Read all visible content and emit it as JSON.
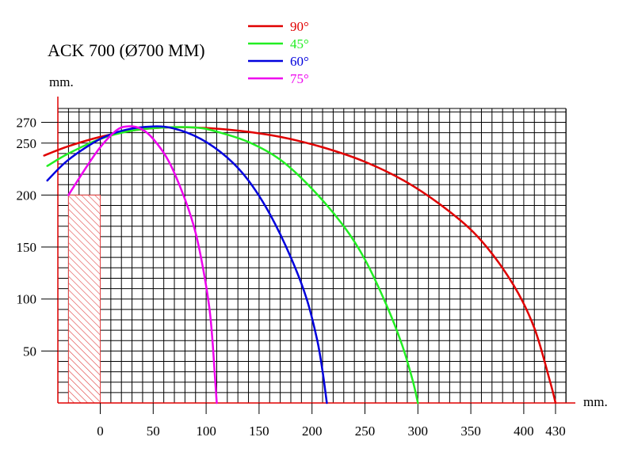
{
  "chart_data": {
    "type": "line",
    "title": "ACK 700 (Ø700 MM)",
    "xlabel": "mm.",
    "ylabel": "mm.",
    "xlim": [
      -40,
      440
    ],
    "ylim": [
      0,
      280
    ],
    "grid": true,
    "x_ticks": [
      0,
      50,
      100,
      150,
      200,
      250,
      300,
      350,
      400,
      430
    ],
    "y_ticks": [
      50,
      100,
      150,
      200,
      250,
      270
    ],
    "legend_position": "top-center",
    "blocked_region": {
      "x": [
        -30,
        0
      ],
      "y": [
        0,
        200
      ],
      "fill": "hatched"
    },
    "series": [
      {
        "name": "90°",
        "color": "#e00000",
        "points": [
          [
            -53,
            238
          ],
          [
            -30,
            247
          ],
          [
            0,
            256
          ],
          [
            30,
            262
          ],
          [
            60,
            265
          ],
          [
            90,
            265
          ],
          [
            130,
            262
          ],
          [
            170,
            256
          ],
          [
            210,
            246
          ],
          [
            250,
            232
          ],
          [
            290,
            212
          ],
          [
            330,
            184
          ],
          [
            360,
            156
          ],
          [
            390,
            114
          ],
          [
            410,
            72
          ],
          [
            425,
            20
          ],
          [
            430,
            0
          ]
        ]
      },
      {
        "name": "45°",
        "color": "#22ee22",
        "points": [
          [
            -50,
            228
          ],
          [
            -30,
            240
          ],
          [
            0,
            254
          ],
          [
            30,
            262
          ],
          [
            60,
            265
          ],
          [
            90,
            265
          ],
          [
            110,
            261
          ],
          [
            140,
            251
          ],
          [
            170,
            234
          ],
          [
            200,
            206
          ],
          [
            230,
            170
          ],
          [
            250,
            138
          ],
          [
            270,
            95
          ],
          [
            285,
            56
          ],
          [
            295,
            22
          ],
          [
            300,
            0
          ]
        ]
      },
      {
        "name": "60°",
        "color": "#0000dd",
        "points": [
          [
            -50,
            214
          ],
          [
            -30,
            234
          ],
          [
            0,
            254
          ],
          [
            25,
            263
          ],
          [
            50,
            266
          ],
          [
            70,
            264
          ],
          [
            95,
            254
          ],
          [
            120,
            236
          ],
          [
            140,
            214
          ],
          [
            160,
            182
          ],
          [
            180,
            140
          ],
          [
            195,
            100
          ],
          [
            205,
            60
          ],
          [
            210,
            30
          ],
          [
            214,
            0
          ]
        ]
      },
      {
        "name": "75°",
        "color": "#ee00ee",
        "points": [
          [
            -30,
            200
          ],
          [
            -15,
            224
          ],
          [
            0,
            246
          ],
          [
            15,
            262
          ],
          [
            25,
            266
          ],
          [
            38,
            264
          ],
          [
            50,
            254
          ],
          [
            65,
            232
          ],
          [
            80,
            196
          ],
          [
            90,
            164
          ],
          [
            97,
            130
          ],
          [
            103,
            92
          ],
          [
            106,
            60
          ],
          [
            108,
            30
          ],
          [
            110,
            0
          ]
        ]
      }
    ]
  }
}
